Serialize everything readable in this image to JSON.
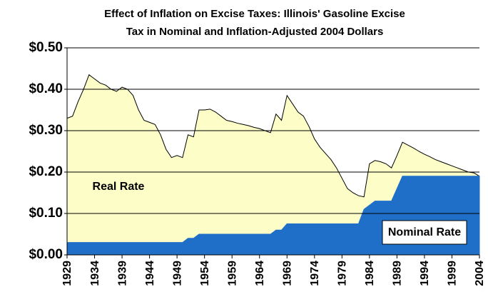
{
  "chart_data": {
    "type": "area",
    "title": [
      "Effect of Inflation on Excise Taxes: Illinois' Gasoline Excise",
      "Tax in Nominal and Inflation-Adjusted 2004 Dollars"
    ],
    "x": [
      1929,
      1930,
      1931,
      1932,
      1933,
      1934,
      1935,
      1936,
      1937,
      1938,
      1939,
      1940,
      1941,
      1942,
      1943,
      1944,
      1945,
      1946,
      1947,
      1948,
      1949,
      1950,
      1951,
      1952,
      1953,
      1954,
      1955,
      1956,
      1957,
      1958,
      1959,
      1960,
      1961,
      1962,
      1963,
      1964,
      1965,
      1966,
      1967,
      1968,
      1969,
      1970,
      1971,
      1972,
      1973,
      1974,
      1975,
      1976,
      1977,
      1978,
      1979,
      1980,
      1981,
      1982,
      1983,
      1984,
      1985,
      1986,
      1987,
      1988,
      1989,
      1990,
      1991,
      1992,
      1993,
      1994,
      1995,
      1996,
      1997,
      1998,
      1999,
      2000,
      2001,
      2002,
      2003,
      2004
    ],
    "series": [
      {
        "name": "Real Rate",
        "color": "#fdfdc8",
        "values": [
          0.33,
          0.335,
          0.37,
          0.4,
          0.435,
          0.425,
          0.415,
          0.41,
          0.4,
          0.395,
          0.405,
          0.4,
          0.385,
          0.35,
          0.325,
          0.32,
          0.315,
          0.29,
          0.255,
          0.235,
          0.24,
          0.235,
          0.29,
          0.285,
          0.35,
          0.35,
          0.352,
          0.345,
          0.335,
          0.325,
          0.322,
          0.318,
          0.315,
          0.312,
          0.308,
          0.305,
          0.3,
          0.295,
          0.34,
          0.325,
          0.385,
          0.365,
          0.345,
          0.335,
          0.31,
          0.28,
          0.26,
          0.245,
          0.23,
          0.21,
          0.185,
          0.16,
          0.15,
          0.143,
          0.14,
          0.22,
          0.228,
          0.225,
          0.22,
          0.21,
          0.24,
          0.272,
          0.265,
          0.258,
          0.25,
          0.243,
          0.237,
          0.23,
          0.225,
          0.22,
          0.215,
          0.21,
          0.205,
          0.2,
          0.198,
          0.19
        ]
      },
      {
        "name": "Nominal Rate",
        "color": "#1f6fc9",
        "values": [
          0.03,
          0.03,
          0.03,
          0.03,
          0.03,
          0.03,
          0.03,
          0.03,
          0.03,
          0.03,
          0.03,
          0.03,
          0.03,
          0.03,
          0.03,
          0.03,
          0.03,
          0.03,
          0.03,
          0.03,
          0.03,
          0.03,
          0.04,
          0.04,
          0.05,
          0.05,
          0.05,
          0.05,
          0.05,
          0.05,
          0.05,
          0.05,
          0.05,
          0.05,
          0.05,
          0.05,
          0.05,
          0.05,
          0.06,
          0.06,
          0.075,
          0.075,
          0.075,
          0.075,
          0.075,
          0.075,
          0.075,
          0.075,
          0.075,
          0.075,
          0.075,
          0.075,
          0.075,
          0.075,
          0.11,
          0.12,
          0.13,
          0.13,
          0.13,
          0.13,
          0.16,
          0.19,
          0.19,
          0.19,
          0.19,
          0.19,
          0.19,
          0.19,
          0.19,
          0.19,
          0.19,
          0.19,
          0.19,
          0.19,
          0.19,
          0.19
        ]
      }
    ],
    "xlim": [
      1929,
      2004
    ],
    "xticks": [
      1929,
      1934,
      1939,
      1944,
      1949,
      1954,
      1959,
      1964,
      1969,
      1974,
      1979,
      1984,
      1989,
      1994,
      1999,
      2004
    ],
    "ylim": [
      0,
      0.5
    ],
    "yticks": [
      {
        "value": 0,
        "label": "$0.00"
      },
      {
        "value": 0.1,
        "label": "$0.10"
      },
      {
        "value": 0.2,
        "label": "$0.20"
      },
      {
        "value": 0.3,
        "label": "$0.30"
      },
      {
        "value": 0.4,
        "label": "$0.40"
      },
      {
        "value": 0.5,
        "label": "$0.50"
      }
    ],
    "grid": true
  }
}
